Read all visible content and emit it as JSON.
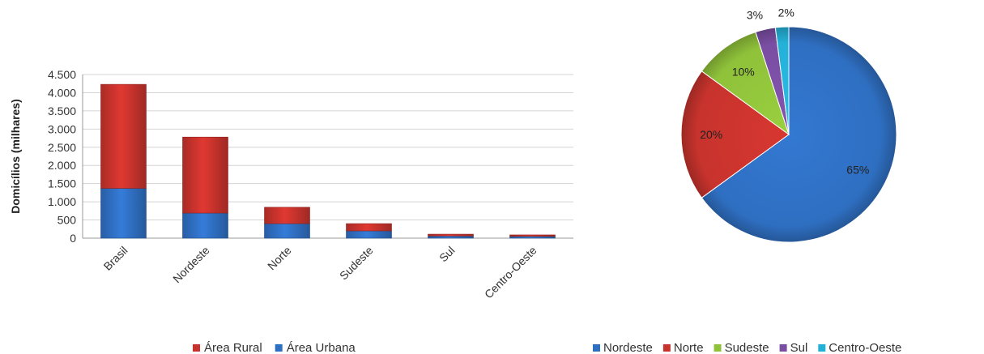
{
  "chart_data": [
    {
      "type": "bar",
      "stacked": true,
      "categories": [
        "Brasil",
        "Nordeste",
        "Norte",
        "Sudeste",
        "Sul",
        "Centro-Oeste"
      ],
      "series": [
        {
          "name": "Área Urbana",
          "values": [
            1370,
            690,
            400,
            200,
            60,
            50
          ],
          "color": "#2f6fc2"
        },
        {
          "name": "Área Rural",
          "values": [
            2860,
            2090,
            450,
            200,
            50,
            40
          ],
          "color": "#c8332d"
        }
      ],
      "ylabel": "Domicílios (milhares)",
      "ylim": [
        0,
        4500
      ],
      "yticks": [
        0,
        500,
        1000,
        1500,
        2000,
        2500,
        3000,
        3500,
        4000,
        4500
      ],
      "ytick_labels": [
        "0",
        "500",
        "1.000",
        "1.500",
        "2.000",
        "2.500",
        "3.000",
        "3.500",
        "4.000",
        "4.500"
      ],
      "legend_order": [
        "Área Rural",
        "Área Urbana"
      ],
      "legend_position": "bottom",
      "grid": true
    },
    {
      "type": "pie",
      "labels": [
        "Nordeste",
        "Norte",
        "Sudeste",
        "Sul",
        "Centro-Oeste"
      ],
      "values": [
        65,
        20,
        10,
        3,
        2
      ],
      "value_labels": [
        "65%",
        "20%",
        "10%",
        "3%",
        "2%"
      ],
      "colors": [
        "#2f6fc2",
        "#c8332d",
        "#8fc13a",
        "#7a4ea3",
        "#24b1d8"
      ],
      "legend_position": "bottom"
    }
  ]
}
